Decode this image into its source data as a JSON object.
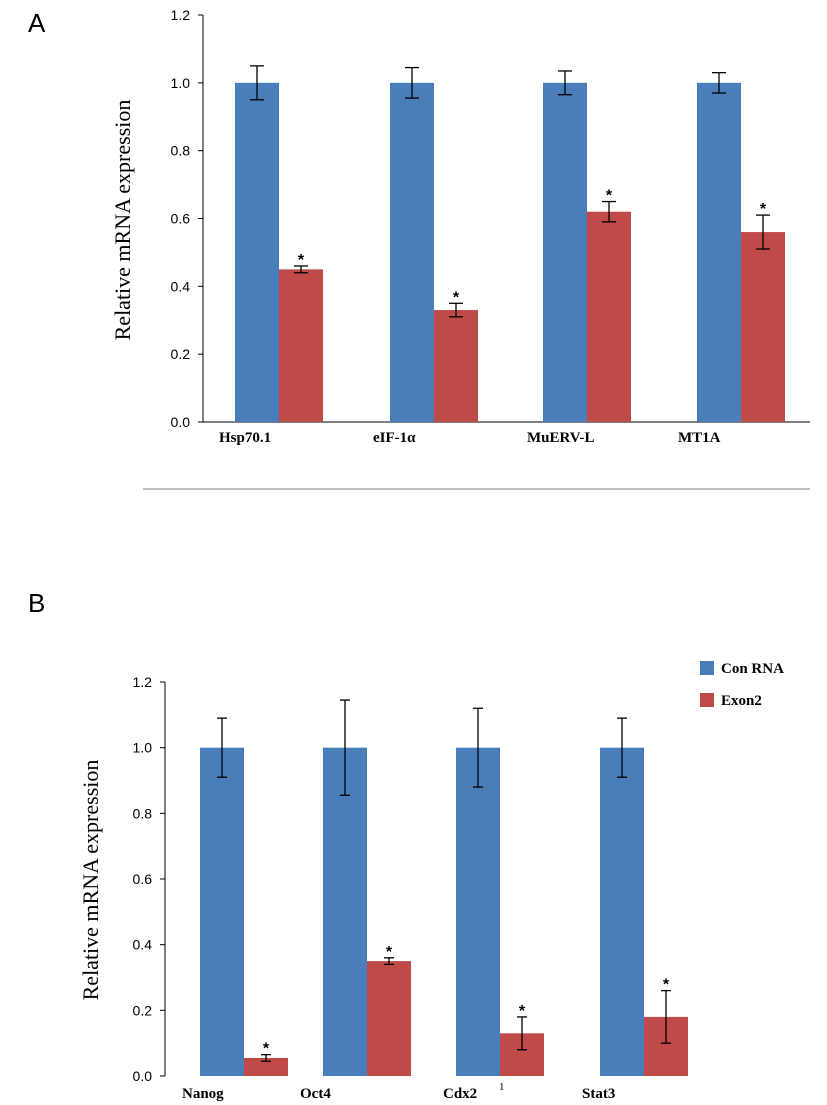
{
  "colors": {
    "con_rna": "#4a7ebb",
    "exon2": "#be4b48",
    "axis": "#000000",
    "separator": "#808080"
  },
  "chart_data": [
    {
      "panel": "A",
      "type": "bar",
      "categories": [
        "Hsp70.1",
        "eIF-1α",
        "MuERV-L",
        "MT1A"
      ],
      "series": [
        {
          "name": "Con RNA",
          "values": [
            1.0,
            1.0,
            1.0,
            1.0
          ],
          "errors": [
            0.05,
            0.045,
            0.035,
            0.03
          ],
          "markers": [
            "",
            "",
            "",
            ""
          ]
        },
        {
          "name": "Exon2",
          "values": [
            0.45,
            0.33,
            0.62,
            0.56
          ],
          "errors": [
            0.01,
            0.02,
            0.03,
            0.05
          ],
          "markers": [
            "*",
            "*",
            "*",
            "*"
          ]
        }
      ],
      "ylabel": "Relative mRNA expression",
      "ylim": [
        0,
        1.2
      ],
      "yticks": [
        "0.0",
        "0.2",
        "0.4",
        "0.6",
        "0.8",
        "1.0",
        "1.2"
      ],
      "grid": false
    },
    {
      "panel": "B",
      "type": "bar",
      "categories": [
        "Nanog",
        "Oct4",
        "Cdx2",
        "Stat3"
      ],
      "category_notes": [
        "",
        "",
        "1",
        ""
      ],
      "series": [
        {
          "name": "Con RNA",
          "values": [
            1.0,
            1.0,
            1.0,
            1.0
          ],
          "errors": [
            0.09,
            0.145,
            0.12,
            0.09
          ],
          "markers": [
            "",
            "",
            "",
            ""
          ]
        },
        {
          "name": "Exon2",
          "values": [
            0.055,
            0.35,
            0.13,
            0.18
          ],
          "errors": [
            0.01,
            0.01,
            0.05,
            0.08
          ],
          "markers": [
            "*",
            "*",
            "*",
            "*"
          ]
        }
      ],
      "ylabel": "Relative mRNA expression",
      "ylim": [
        0,
        1.2
      ],
      "yticks": [
        "0.0",
        "0.2",
        "0.4",
        "0.6",
        "0.8",
        "1.0",
        "1.2"
      ],
      "legend": {
        "position": "top-right",
        "entries": [
          "Con RNA",
          "Exon2"
        ]
      },
      "grid": false
    }
  ]
}
